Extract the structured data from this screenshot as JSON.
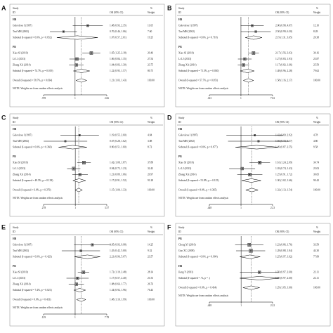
{
  "chart_data": [
    {
      "type": "forest",
      "panel": "A",
      "study_header": "Study",
      "id_header": "ID",
      "or_header": "OR (95% CI)",
      "weight_symbol": "%",
      "weight_header": "Weight",
      "log": true,
      "reference_line": 1,
      "xlim": [
        0.378,
        2.66
      ],
      "xticks": [
        {
          "value": 0.378,
          "label": ".378"
        },
        1,
        2.66
      ],
      "note": "NOTE: Weights are from random effects analysis",
      "color": "#000000",
      "rows": [
        {
          "kind": "group",
          "label": "HB"
        },
        {
          "kind": "study",
          "label": "Golovleva I (1997)",
          "or": 1.48,
          "ci": [
            0.93,
            2.35
          ],
          "or_text": "1.48 (0.93, 2.35)",
          "weight": "11.65"
        },
        {
          "kind": "study",
          "label": "Tsai MH (2002)",
          "or": 0.7,
          "ci": [
            0.46,
            1.06
          ],
          "or_text": "0.70 (0.46, 1.06)",
          "weight": "7.60"
        },
        {
          "kind": "subtotal",
          "label": "Subtotal (I-squared = 0.0%, p = 0.652)",
          "or": 1.07,
          "ci": [
            0.57,
            2.01
          ],
          "or_text": "1.07 (0.57, 2.01)",
          "weight": "19.25"
        },
        {
          "kind": "group",
          "label": "PB"
        },
        {
          "kind": "study",
          "label": "Xiao SJ (2010)",
          "or": 1.65,
          "ci": [
            1.25,
            2.18
          ],
          "or_text": "1.65 (1.25, 2.18)",
          "weight": "29.46"
        },
        {
          "kind": "study",
          "label": "Li LJ (2013)",
          "or": 1.06,
          "ci": [
            0.84,
            1.35
          ],
          "or_text": "1.06 (0.84, 1.35)",
          "weight": "27.54"
        },
        {
          "kind": "study",
          "label": "Zhang XA (2014)",
          "or": 1.04,
          "ci": [
            0.83,
            1.3
          ],
          "or_text": "1.04 (0.83, 1.30)",
          "weight": "23.75"
        },
        {
          "kind": "subtotal",
          "label": "Subtotal (I-squared = 74.7%, p = 0.019)",
          "or": 1.22,
          "ci": [
            0.95,
            1.57
          ],
          "or_text": "1.22 (0.95, 1.57)",
          "weight": "80.75"
        },
        {
          "kind": "overall",
          "label": "Overall (I-squared = 58.7%, p = 0.034)",
          "or": 1.21,
          "ci": [
            1.03,
            1.43
          ],
          "or_text": "1.21 (1.03, 1.43)",
          "weight": "100.00"
        }
      ]
    },
    {
      "type": "forest",
      "panel": "B",
      "study_header": "Study",
      "id_header": "ID",
      "or_header": "OR (95% CI)",
      "weight_symbol": "%",
      "weight_header": "Weight",
      "log": true,
      "reference_line": 1,
      "xlim": [
        0.143,
        7.02
      ],
      "xticks": [
        {
          "value": 0.143,
          "label": ".143"
        },
        1,
        7.02
      ],
      "note": "NOTE: Weights are from random effects analysis",
      "color": "#000000",
      "rows": [
        {
          "kind": "group",
          "label": "HB"
        },
        {
          "kind": "study",
          "label": "Golovleva I (1997)",
          "or": 2.0,
          "ci": [
            0.98,
            4.07
          ],
          "or_text": "2.00 (0.98, 4.07)",
          "weight": "12.10"
        },
        {
          "kind": "study",
          "label": "Tsai MH (2002)",
          "or": 2.5,
          "ci": [
            0.99,
            6.3
          ],
          "or_text": "2.50 (0.99, 6.30)",
          "weight": "8.28"
        },
        {
          "kind": "subtotal",
          "label": "Subtotal (I-squared = 0.0%, p = 0.718)",
          "or": 2.19,
          "ci": [
            1.31,
            3.65
          ],
          "or_text": "2.19 (1.31, 3.65)",
          "weight": "20.38"
        },
        {
          "kind": "group",
          "label": "PB"
        },
        {
          "kind": "study",
          "label": "Xiao SJ (2010)",
          "or": 2.17,
          "ci": [
            1.56,
            3.03
          ],
          "or_text": "2.17 (1.56, 3.03)",
          "weight": "30.16"
        },
        {
          "kind": "study",
          "label": "Li LJ (2013)",
          "or": 1.27,
          "ci": [
            0.83,
            1.93
          ],
          "or_text": "1.27 (0.83, 1.93)",
          "weight": "23.87"
        },
        {
          "kind": "study",
          "label": "Zhang XA (2014)",
          "or": 1.17,
          "ci": [
            0.82,
            1.66
          ],
          "or_text": "1.17 (0.82, 1.66)",
          "weight": "25.59"
        },
        {
          "kind": "subtotal",
          "label": "Subtotal (I-squared = 71.3%, p = 0.030)",
          "or": 1.48,
          "ci": [
            0.96,
            2.28
          ],
          "or_text": "1.48 (0.96, 2.28)",
          "weight": "79.62"
        },
        {
          "kind": "overall",
          "label": "Overall (I-squared = 57.7%, p = 0.051)",
          "or": 1.58,
          "ci": [
            1.16,
            2.17
          ],
          "or_text": "1.58 (1.16, 2.17)",
          "weight": "100.00"
        }
      ]
    },
    {
      "type": "forest",
      "panel": "C",
      "study_header": "Study",
      "id_header": "ID",
      "or_header": "OR (95% CI)",
      "weight_symbol": "%",
      "weight_header": "Weight",
      "log": true,
      "reference_line": 1,
      "xlim": [
        0.278,
        3.57
      ],
      "xticks": [
        {
          "value": 0.278,
          "label": ".278"
        },
        1,
        3.57
      ],
      "note": "NOTE: Weights are from random effects analysis",
      "color": "#000000",
      "rows": [
        {
          "kind": "group",
          "label": "HB"
        },
        {
          "kind": "study",
          "label": "Golovleva I (1997)",
          "or": 1.19,
          "ci": [
            0.55,
            2.6
          ],
          "or_text": "1.19 (0.55, 2.60)",
          "weight": "4.84"
        },
        {
          "kind": "study",
          "label": "Tsai MH (2002)",
          "or": 0.67,
          "ci": [
            0.28,
            1.62
          ],
          "or_text": "0.67 (0.28, 1.62)",
          "weight": "3.88"
        },
        {
          "kind": "subtotal",
          "label": "Subtotal (I-squared = 0.0%, p = 0.366)",
          "or": 0.9,
          "ci": [
            0.51,
            1.6
          ],
          "or_text": "0.90 (0.51, 1.60)",
          "weight": "8.72"
        },
        {
          "kind": "group",
          "label": "PB"
        },
        {
          "kind": "study",
          "label": "Xiao SJ (2010)",
          "or": 1.42,
          "ci": [
            1.08,
            1.87
          ],
          "or_text": "1.42 (1.08, 1.87)",
          "weight": "37.88"
        },
        {
          "kind": "study",
          "label": "Li LJ (2013)",
          "or": 0.94,
          "ci": [
            0.72,
            1.23
          ],
          "or_text": "0.94 (0.72, 1.23)",
          "weight": "32.43"
        },
        {
          "kind": "study",
          "label": "Zhang XA (2014)",
          "or": 1.21,
          "ci": [
            0.89,
            1.66
          ],
          "or_text": "1.21 (0.89, 1.66)",
          "weight": "20.97"
        },
        {
          "kind": "subtotal",
          "label": "Subtotal (I-squared = 49.5%, p = 0.138)",
          "or": 1.17,
          "ci": [
            0.91,
            1.52
          ],
          "or_text": "1.17 (0.91, 1.52)",
          "weight": "91.28"
        },
        {
          "kind": "overall",
          "label": "Overall (I-squared = 6.0%, p = 0.379)",
          "or": 1.15,
          "ci": [
            1.0,
            1.33
          ],
          "or_text": "1.15 (1.00, 1.33)",
          "weight": "100.00"
        }
      ]
    },
    {
      "type": "forest",
      "panel": "D",
      "study_header": "Study",
      "id_header": "ID",
      "or_header": "OR (95% CI)",
      "weight_symbol": "%",
      "weight_header": "Weight",
      "log": true,
      "reference_line": 1,
      "xlim": [
        0.448,
        2.23
      ],
      "xticks": [
        {
          "value": 0.448,
          "label": ".448"
        },
        1,
        2.23
      ],
      "note": "NOTE: Weights are from random effects analysis",
      "color": "#000000",
      "rows": [
        {
          "kind": "group",
          "label": "HB"
        },
        {
          "kind": "study",
          "label": "Golovleva I (1997)",
          "or": 1.42,
          "ci": [
            0.69,
            2.92
          ],
          "or_text": "1.42 (0.69, 2.92)",
          "weight": "4.78"
        },
        {
          "kind": "study",
          "label": "Tsai MH (2002)",
          "or": 1.56,
          "ci": [
            0.72,
            3.37
          ],
          "or_text": "1.56 (0.72, 3.37)",
          "weight": "4.80"
        },
        {
          "kind": "subtotal",
          "label": "Subtotal (I-squared = 0.0%, p = 0.877)",
          "or": 1.49,
          "ci": [
            0.87,
            2.55
          ],
          "or_text": "1.49 (0.87, 2.55)",
          "weight": "9.58"
        },
        {
          "kind": "group",
          "label": "PB"
        },
        {
          "kind": "study",
          "label": "Xiao SJ (2010)",
          "or": 1.61,
          "ci": [
            1.24,
            2.09
          ],
          "or_text": "1.61 (1.24, 2.09)",
          "weight": "34.74"
        },
        {
          "kind": "study",
          "label": "Li LJ (2013)",
          "or": 1.03,
          "ci": [
            0.74,
            1.43
          ],
          "or_text": "1.03 (0.74, 1.43)",
          "weight": "25.03"
        },
        {
          "kind": "study",
          "label": "Zhang XA (2014)",
          "or": 1.25,
          "ci": [
            0.91,
            1.72
          ],
          "or_text": "1.25 (0.91, 1.72)",
          "weight": "30.65"
        },
        {
          "kind": "subtotal",
          "label": "Subtotal (I-squared = 51.8%, p = 0.125)",
          "or": 1.3,
          "ci": [
            1.02,
            1.66
          ],
          "or_text": "1.30 (1.02, 1.66)",
          "weight": "90.42"
        },
        {
          "kind": "overall",
          "label": "Overall (I-squared = 8.0%, p = 0.365)",
          "or": 1.32,
          "ci": [
            1.13,
            1.54
          ],
          "or_text": "1.32 (1.13, 1.54)",
          "weight": "100.00"
        }
      ]
    },
    {
      "type": "forest",
      "panel": "E",
      "study_header": "Study",
      "id_header": "ID",
      "or_header": "OR (95% CI)",
      "weight_symbol": "%",
      "weight_header": "Weight",
      "log": true,
      "reference_line": 1,
      "xlim": [
        0.129,
        7.78
      ],
      "xticks": [
        {
          "value": 0.129,
          "label": ".129"
        },
        1,
        7.78
      ],
      "note": "NOTE: Weights are from random effects analysis",
      "color": "#000000",
      "rows": [
        {
          "kind": "group",
          "label": "HB"
        },
        {
          "kind": "study",
          "label": "Golovleva I (1997)",
          "or": 3.05,
          "ci": [
            0.93,
            9.98
          ],
          "or_text": "3.05 (0.93, 9.98)",
          "weight": "14.25"
        },
        {
          "kind": "study",
          "label": "Tsai MH (2002)",
          "or": 1.45,
          "ci": [
            0.42,
            5.0
          ],
          "or_text": "1.45 (0.42, 5.00)",
          "weight": "9.32"
        },
        {
          "kind": "subtotal",
          "label": "Subtotal (I-squared = 0.0%, p = 0.423)",
          "or": 2.21,
          "ci": [
            0.96,
            5.07
          ],
          "or_text": "2.21 (0.96, 5.07)",
          "weight": "23.57"
        },
        {
          "kind": "group",
          "label": "PB"
        },
        {
          "kind": "study",
          "label": "Xiao SJ (2010)",
          "or": 1.72,
          "ci": [
            1.19,
            2.48
          ],
          "or_text": "1.72 (1.19, 2.48)",
          "weight": "28.14"
        },
        {
          "kind": "study",
          "label": "Li LJ (2013)",
          "or": 1.17,
          "ci": [
            0.57,
            2.4
          ],
          "or_text": "1.17 (0.57, 2.40)",
          "weight": "21.53"
        },
        {
          "kind": "study",
          "label": "Zhang XA (2014)",
          "or": 1.08,
          "ci": [
            0.66,
            1.77
          ],
          "or_text": "1.08 (0.66, 1.77)",
          "weight": "26.76"
        },
        {
          "kind": "subtotal",
          "label": "Subtotal (I-squared = 7.4%, p = 0.021)",
          "or": 1.34,
          "ci": [
            0.92,
            1.96
          ],
          "or_text": "1.34 (0.92, 1.96)",
          "weight": "76.43"
        },
        {
          "kind": "overall",
          "label": "Overall (I-squared = 0.0%, p = 0.433)",
          "or": 1.48,
          "ci": [
            1.1,
            1.99
          ],
          "or_text": "1.48 (1.10, 1.99)",
          "weight": "100.00"
        }
      ]
    },
    {
      "type": "forest",
      "panel": "F",
      "study_header": "Study",
      "id_header": "ID",
      "or_header": "OR (95% CI)",
      "weight_symbol": "%",
      "weight_header": "Weight",
      "log": true,
      "reference_line": 1,
      "xlim": [
        0.448,
        2.22
      ],
      "xticks": [
        {
          "value": 0.448,
          "label": ".448"
        },
        1,
        2.22
      ],
      "note": "NOTE: Weights are from random effects analysis",
      "color": "#000000",
      "rows": [
        {
          "kind": "group",
          "label": "PB"
        },
        {
          "kind": "study",
          "label": "Cheng YJ (2010)",
          "or": 1.23,
          "ci": [
            0.86,
            1.76
          ],
          "or_text": "1.23 (0.86, 1.76)",
          "weight": "33.59"
        },
        {
          "kind": "study",
          "label": "Guo XC (2008)",
          "or": 1.28,
          "ci": [
            0.88,
            1.84
          ],
          "or_text": "1.28 (0.88, 1.84)",
          "weight": "44.30"
        },
        {
          "kind": "subtotal",
          "label": "Subtotal (I-squared = 0.0%, p = 0.904)",
          "or": 1.25,
          "ci": [
            0.97,
            1.62
          ],
          "or_text": "1.25 (0.97, 1.62)",
          "weight": "77.89"
        },
        {
          "kind": "group",
          "label": "HB"
        },
        {
          "kind": "study",
          "label": "Jiang Y (2011)",
          "or": 1.59,
          "ci": [
            0.97,
            2.6
          ],
          "or_text": "1.59 (0.97, 2.60)",
          "weight": "22.11"
        },
        {
          "kind": "subtotal",
          "label": "Subtotal (I-squared = .%, p = .)",
          "or": 1.59,
          "ci": [
            0.97,
            2.6
          ],
          "or_text": "1.59 (0.97, 2.60)",
          "weight": "22.11"
        },
        {
          "kind": "overall",
          "label": "Overall (I-squared = 0.0%, p = 0.434)",
          "or": 1.29,
          "ci": [
            1.05,
            1.6
          ],
          "or_text": "1.29 (1.05, 1.60)",
          "weight": "100.00"
        }
      ]
    }
  ]
}
